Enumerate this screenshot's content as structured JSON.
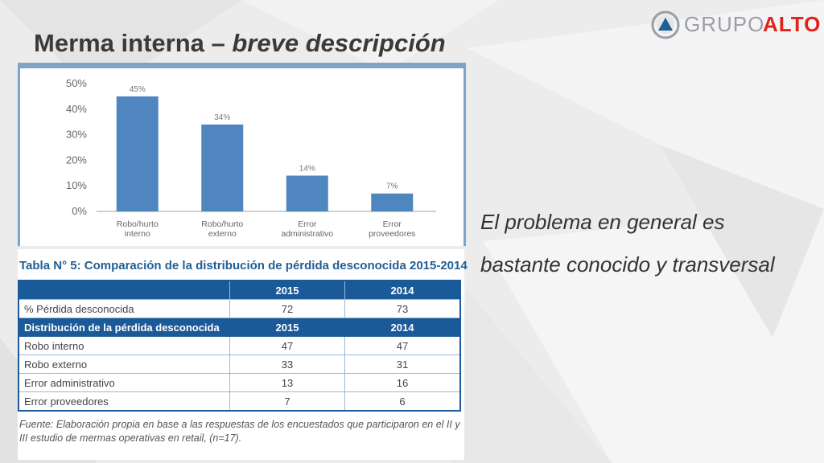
{
  "slide": {
    "title_main": "Merma interna – ",
    "title_emphasis": "breve descripción",
    "statement_line1": "El problema en general es",
    "statement_line2": "bastante conocido y transversal"
  },
  "logo": {
    "text_grupo": "GRUPO",
    "text_alto": "ALTO",
    "icon": "triangle-in-circle-icon"
  },
  "colors": {
    "bar": "#4f86c0",
    "table_header": "#1b5a99",
    "title": "#3a3a3a",
    "logo_red": "#e2231a"
  },
  "chart_data": {
    "type": "bar",
    "categories": [
      [
        "Robo/hurto",
        "interno"
      ],
      [
        "Robo/hurto",
        "externo"
      ],
      [
        "Error",
        "administrativo"
      ],
      [
        "Error",
        "proveedores"
      ]
    ],
    "values": [
      45,
      34,
      14,
      7
    ],
    "data_labels": [
      "45%",
      "34%",
      "14%",
      "7%"
    ],
    "yticks": [
      0,
      10,
      20,
      30,
      40,
      50
    ],
    "ytick_labels": [
      "0%",
      "10%",
      "20%",
      "30%",
      "40%",
      "50%"
    ],
    "ylim": [
      0,
      50
    ],
    "grid": false,
    "legend": "none"
  },
  "table": {
    "title": "Tabla N° 5: Comparación de la distribución de pérdida desconocida 2015-2014",
    "header": [
      "",
      "2015",
      "2014"
    ],
    "rows": [
      {
        "type": "row",
        "cells": [
          "% Pérdida desconocida",
          "72",
          "73"
        ]
      },
      {
        "type": "hdr",
        "cells": [
          "Distribución de la pérdida desconocida",
          "2015",
          "2014"
        ]
      },
      {
        "type": "row",
        "cells": [
          "Robo interno",
          "47",
          "47"
        ]
      },
      {
        "type": "row",
        "cells": [
          "Robo externo",
          "33",
          "31"
        ]
      },
      {
        "type": "row",
        "cells": [
          "Error administrativo",
          "13",
          "16"
        ]
      },
      {
        "type": "row",
        "cells": [
          "Error proveedores",
          "7",
          "6"
        ]
      }
    ],
    "source": "Fuente: Elaboración propia en base a las respuestas de los encuestados que participaron en el II y III estudio de mermas operativas en retail, (n=17)."
  }
}
